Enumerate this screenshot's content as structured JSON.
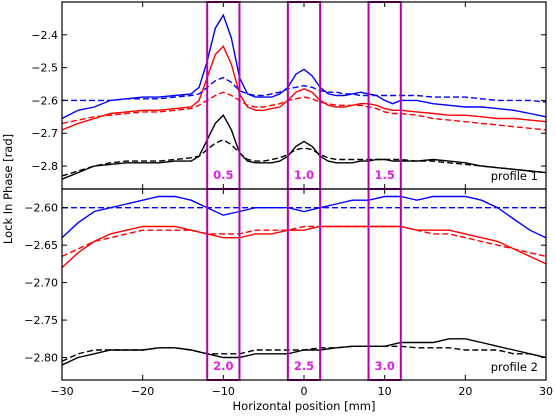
{
  "chart_data": [
    {
      "type": "line",
      "panel": "top",
      "ylabel": "Lock In Phase [rad]",
      "xlim": [
        -30,
        30
      ],
      "ylim": [
        -2.87,
        -2.3
      ],
      "yticks": [
        -2.8,
        -2.7,
        -2.6,
        -2.5,
        -2.4
      ],
      "ytick_labels": [
        "−2.8",
        "−2.7",
        "−2.6",
        "−2.5",
        "−2.4"
      ],
      "annotation": "profile 1",
      "boxes": [
        {
          "label": "0.5",
          "x0": -12,
          "x1": -8
        },
        {
          "label": "1.0",
          "x0": -2,
          "x1": 2
        },
        {
          "label": "1.5",
          "x0": 8,
          "x1": 12
        }
      ],
      "x": [
        -30,
        -28,
        -26,
        -24,
        -22,
        -20,
        -18,
        -16,
        -14,
        -13,
        -12,
        -11,
        -10,
        -9,
        -8,
        -7,
        -6,
        -5,
        -4,
        -3,
        -2,
        -1,
        0,
        1,
        2,
        3,
        4,
        5,
        6,
        7,
        8,
        9,
        10,
        11,
        12,
        14,
        16,
        18,
        20,
        22,
        24,
        26,
        28,
        30
      ],
      "series": [
        {
          "color": "#0000ff",
          "style": "solid",
          "values": [
            -2.655,
            -2.63,
            -2.62,
            -2.6,
            -2.595,
            -2.59,
            -2.59,
            -2.585,
            -2.58,
            -2.56,
            -2.48,
            -2.38,
            -2.34,
            -2.41,
            -2.53,
            -2.58,
            -2.59,
            -2.59,
            -2.59,
            -2.58,
            -2.56,
            -2.52,
            -2.505,
            -2.525,
            -2.56,
            -2.58,
            -2.585,
            -2.585,
            -2.58,
            -2.575,
            -2.58,
            -2.585,
            -2.6,
            -2.61,
            -2.6,
            -2.6,
            -2.61,
            -2.615,
            -2.62,
            -2.62,
            -2.625,
            -2.63,
            -2.64,
            -2.65
          ]
        },
        {
          "color": "#0000ff",
          "style": "dashed",
          "values": [
            -2.6,
            -2.6,
            -2.6,
            -2.6,
            -2.595,
            -2.595,
            -2.595,
            -2.59,
            -2.585,
            -2.58,
            -2.56,
            -2.54,
            -2.53,
            -2.545,
            -2.57,
            -2.58,
            -2.585,
            -2.585,
            -2.58,
            -2.575,
            -2.565,
            -2.56,
            -2.555,
            -2.56,
            -2.57,
            -2.575,
            -2.575,
            -2.58,
            -2.58,
            -2.585,
            -2.585,
            -2.585,
            -2.585,
            -2.585,
            -2.585,
            -2.585,
            -2.59,
            -2.59,
            -2.59,
            -2.595,
            -2.6,
            -2.6,
            -2.6,
            -2.605
          ]
        },
        {
          "color": "#ff0000",
          "style": "solid",
          "values": [
            -2.69,
            -2.67,
            -2.655,
            -2.64,
            -2.635,
            -2.63,
            -2.63,
            -2.625,
            -2.62,
            -2.6,
            -2.53,
            -2.46,
            -2.435,
            -2.49,
            -2.58,
            -2.62,
            -2.63,
            -2.63,
            -2.625,
            -2.62,
            -2.6,
            -2.575,
            -2.565,
            -2.575,
            -2.6,
            -2.615,
            -2.62,
            -2.62,
            -2.615,
            -2.61,
            -2.61,
            -2.615,
            -2.625,
            -2.63,
            -2.63,
            -2.635,
            -2.64,
            -2.645,
            -2.645,
            -2.65,
            -2.655,
            -2.655,
            -2.66,
            -2.665
          ]
        },
        {
          "color": "#ff0000",
          "style": "dashed",
          "values": [
            -2.67,
            -2.66,
            -2.65,
            -2.645,
            -2.64,
            -2.635,
            -2.635,
            -2.63,
            -2.625,
            -2.615,
            -2.6,
            -2.585,
            -2.575,
            -2.585,
            -2.6,
            -2.615,
            -2.62,
            -2.62,
            -2.615,
            -2.61,
            -2.6,
            -2.595,
            -2.59,
            -2.595,
            -2.605,
            -2.61,
            -2.615,
            -2.615,
            -2.615,
            -2.615,
            -2.62,
            -2.625,
            -2.635,
            -2.64,
            -2.64,
            -2.645,
            -2.655,
            -2.66,
            -2.665,
            -2.67,
            -2.675,
            -2.68,
            -2.685,
            -2.69
          ]
        },
        {
          "color": "#000000",
          "style": "solid",
          "values": [
            -2.84,
            -2.82,
            -2.8,
            -2.795,
            -2.79,
            -2.79,
            -2.79,
            -2.785,
            -2.785,
            -2.77,
            -2.72,
            -2.67,
            -2.645,
            -2.69,
            -2.76,
            -2.785,
            -2.79,
            -2.79,
            -2.79,
            -2.785,
            -2.77,
            -2.74,
            -2.725,
            -2.74,
            -2.77,
            -2.785,
            -2.79,
            -2.79,
            -2.79,
            -2.785,
            -2.785,
            -2.78,
            -2.78,
            -2.785,
            -2.785,
            -2.785,
            -2.78,
            -2.785,
            -2.79,
            -2.8,
            -2.805,
            -2.81,
            -2.815,
            -2.82
          ]
        },
        {
          "color": "#000000",
          "style": "dashed",
          "values": [
            -2.83,
            -2.815,
            -2.8,
            -2.79,
            -2.785,
            -2.785,
            -2.785,
            -2.78,
            -2.775,
            -2.77,
            -2.75,
            -2.73,
            -2.72,
            -2.735,
            -2.76,
            -2.78,
            -2.785,
            -2.785,
            -2.78,
            -2.775,
            -2.765,
            -2.75,
            -2.745,
            -2.75,
            -2.765,
            -2.775,
            -2.78,
            -2.78,
            -2.78,
            -2.78,
            -2.78,
            -2.78,
            -2.78,
            -2.78,
            -2.78,
            -2.785,
            -2.785,
            -2.79,
            -2.795,
            -2.8,
            -2.805,
            -2.81,
            -2.815,
            -2.82
          ]
        }
      ]
    },
    {
      "type": "line",
      "panel": "bottom",
      "ylabel": "Lock In Phase [rad]",
      "xlabel": "Horizontal position [mm]",
      "xlim": [
        -30,
        30
      ],
      "ylim": [
        -2.83,
        -2.575
      ],
      "xticks": [
        -30,
        -20,
        -10,
        0,
        10,
        20,
        30
      ],
      "xtick_labels": [
        "−30",
        "−20",
        "−10",
        "0",
        "10",
        "20",
        "30"
      ],
      "yticks": [
        -2.8,
        -2.75,
        -2.7,
        -2.65,
        -2.6
      ],
      "ytick_labels": [
        "−2.80",
        "−2.75",
        "−2.70",
        "−2.65",
        "−2.60"
      ],
      "annotation": "profile 2",
      "boxes": [
        {
          "label": "2.0",
          "x0": -12,
          "x1": -8
        },
        {
          "label": "2.5",
          "x0": -2,
          "x1": 2
        },
        {
          "label": "3.0",
          "x0": 8,
          "x1": 12
        }
      ],
      "x": [
        -30,
        -28,
        -26,
        -24,
        -22,
        -20,
        -18,
        -16,
        -14,
        -12,
        -10,
        -8,
        -6,
        -4,
        -2,
        0,
        2,
        4,
        6,
        8,
        10,
        12,
        14,
        16,
        18,
        20,
        22,
        24,
        26,
        28,
        30
      ],
      "series": [
        {
          "color": "#0000ff",
          "style": "solid",
          "values": [
            -2.64,
            -2.62,
            -2.605,
            -2.6,
            -2.595,
            -2.59,
            -2.585,
            -2.585,
            -2.59,
            -2.6,
            -2.61,
            -2.605,
            -2.6,
            -2.6,
            -2.6,
            -2.605,
            -2.6,
            -2.595,
            -2.59,
            -2.59,
            -2.585,
            -2.585,
            -2.59,
            -2.585,
            -2.585,
            -2.585,
            -2.59,
            -2.6,
            -2.615,
            -2.63,
            -2.64
          ]
        },
        {
          "color": "#0000ff",
          "style": "dashed",
          "values": [
            -2.6,
            -2.6,
            -2.6,
            -2.6,
            -2.6,
            -2.6,
            -2.6,
            -2.6,
            -2.6,
            -2.6,
            -2.6,
            -2.6,
            -2.6,
            -2.6,
            -2.6,
            -2.6,
            -2.6,
            -2.6,
            -2.6,
            -2.6,
            -2.6,
            -2.6,
            -2.6,
            -2.6,
            -2.6,
            -2.6,
            -2.6,
            -2.6,
            -2.6,
            -2.6,
            -2.6
          ]
        },
        {
          "color": "#ff0000",
          "style": "solid",
          "values": [
            -2.68,
            -2.66,
            -2.645,
            -2.635,
            -2.63,
            -2.625,
            -2.625,
            -2.625,
            -2.63,
            -2.635,
            -2.64,
            -2.64,
            -2.635,
            -2.635,
            -2.63,
            -2.63,
            -2.625,
            -2.625,
            -2.625,
            -2.625,
            -2.625,
            -2.625,
            -2.63,
            -2.63,
            -2.63,
            -2.635,
            -2.64,
            -2.645,
            -2.655,
            -2.665,
            -2.675
          ]
        },
        {
          "color": "#ff0000",
          "style": "dashed",
          "values": [
            -2.665,
            -2.655,
            -2.645,
            -2.64,
            -2.635,
            -2.63,
            -2.63,
            -2.63,
            -2.63,
            -2.635,
            -2.635,
            -2.635,
            -2.63,
            -2.63,
            -2.63,
            -2.625,
            -2.625,
            -2.625,
            -2.625,
            -2.625,
            -2.625,
            -2.625,
            -2.63,
            -2.635,
            -2.635,
            -2.64,
            -2.645,
            -2.65,
            -2.655,
            -2.66,
            -2.665
          ]
        },
        {
          "color": "#000000",
          "style": "solid",
          "values": [
            -2.81,
            -2.8,
            -2.795,
            -2.79,
            -2.79,
            -2.79,
            -2.787,
            -2.787,
            -2.79,
            -2.795,
            -2.8,
            -2.8,
            -2.795,
            -2.795,
            -2.795,
            -2.79,
            -2.79,
            -2.787,
            -2.785,
            -2.785,
            -2.785,
            -2.78,
            -2.78,
            -2.78,
            -2.775,
            -2.775,
            -2.78,
            -2.785,
            -2.79,
            -2.795,
            -2.8
          ]
        },
        {
          "color": "#000000",
          "style": "dashed",
          "values": [
            -2.805,
            -2.795,
            -2.79,
            -2.79,
            -2.79,
            -2.79,
            -2.787,
            -2.787,
            -2.79,
            -2.795,
            -2.795,
            -2.795,
            -2.79,
            -2.79,
            -2.79,
            -2.79,
            -2.787,
            -2.787,
            -2.785,
            -2.785,
            -2.785,
            -2.785,
            -2.787,
            -2.787,
            -2.787,
            -2.79,
            -2.79,
            -2.79,
            -2.795,
            -2.795,
            -2.8
          ]
        }
      ]
    }
  ]
}
